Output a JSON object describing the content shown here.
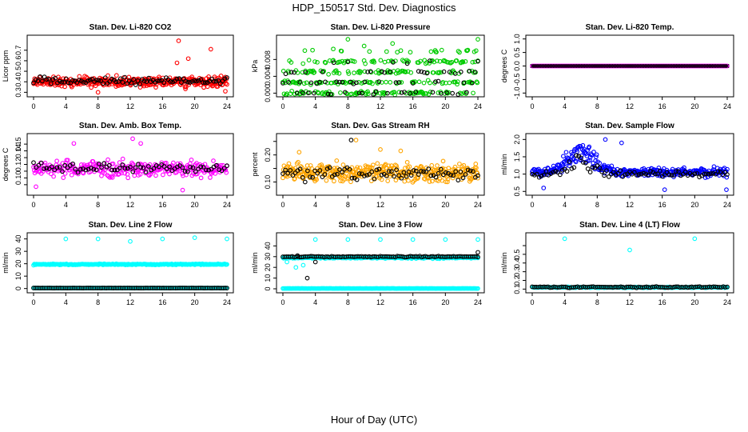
{
  "figure": {
    "title": "HDP_150517  Std. Dev. Diagnostics",
    "xlabel": "Hour of Day (UTC)"
  },
  "chart_data": [
    {
      "id": "co2",
      "type": "scatter",
      "title": "Stan. Dev. Li-820 CO2",
      "ylabel": "Licor ppm",
      "xlim": [
        0,
        24
      ],
      "ylim": [
        0.28,
        0.82
      ],
      "xticks": [
        0,
        4,
        8,
        12,
        16,
        20,
        24
      ],
      "yticks": [
        0.3,
        0.4,
        0.5,
        0.6,
        0.7
      ],
      "ytick_labels": [
        "0.3",
        "0.4",
        "0.5",
        "0.6",
        "0.7"
      ],
      "series": [
        {
          "color": "#ff0000",
          "marker": "circle",
          "seed": 11,
          "n": 360,
          "base": 0.4,
          "noise": 0.045,
          "outliers": [
            [
              18.0,
              0.79
            ],
            [
              19.2,
              0.62
            ],
            [
              22.0,
              0.71
            ],
            [
              23.8,
              0.31
            ],
            [
              8.0,
              0.3
            ],
            [
              17.8,
              0.58
            ]
          ]
        },
        {
          "color": "#000000",
          "marker": "circle",
          "seed": 12,
          "n": 90,
          "base": 0.41,
          "noise": 0.035,
          "outliers": []
        }
      ]
    },
    {
      "id": "pressure",
      "type": "scatter",
      "title": "Stan. Dev. Li-820 Pressure",
      "ylabel": "kPa",
      "xlim": [
        0,
        24
      ],
      "ylim": [
        -0.0003,
        0.0132
      ],
      "xticks": [
        0,
        4,
        8,
        12,
        16,
        20,
        24
      ],
      "yticks": [
        0,
        0.004,
        0.008
      ],
      "ytick_labels": [
        "0.000",
        "0.004",
        "0.008"
      ],
      "series": [
        {
          "color": "#00cc00",
          "marker": "circle",
          "seed": 21,
          "n": 330,
          "base": 0.005,
          "noise": 0.0028,
          "levels": [
            0,
            0.0025,
            0.005,
            0.0075,
            0.01
          ],
          "outliers": [
            [
              8.0,
              0.0128
            ],
            [
              24.0,
              0.0128
            ],
            [
              13.5,
              0.0118
            ],
            [
              10.0,
              0.0112
            ],
            [
              6.2,
              0.0105
            ]
          ]
        },
        {
          "color": "#000000",
          "marker": "circle",
          "seed": 22,
          "n": 70,
          "base": 0.0045,
          "noise": 0.0022,
          "levels": [
            0,
            0.0025,
            0.005,
            0.0075
          ],
          "outliers": []
        }
      ]
    },
    {
      "id": "temp",
      "type": "scatter",
      "title": "Stan. Dev. Li-820 Temp.",
      "ylabel": "degrees C",
      "xlim": [
        0,
        24
      ],
      "ylim": [
        -1.05,
        1.05
      ],
      "xticks": [
        0,
        4,
        8,
        12,
        16,
        20,
        24
      ],
      "yticks": [
        -1,
        -0.5,
        0,
        0.5,
        1
      ],
      "ytick_labels": [
        "-1.0",
        "-0.5",
        "0.0",
        "0.5",
        "1.0"
      ],
      "series": [
        {
          "color": "#ff00ff",
          "marker": "circle",
          "seed": 31,
          "n": 200,
          "base": 0,
          "noise": 0,
          "outliers": []
        },
        {
          "color": "#000000",
          "marker": "cross",
          "seed": 32,
          "n": 120,
          "base": 0,
          "noise": 0,
          "outliers": []
        }
      ]
    },
    {
      "id": "ambtemp",
      "type": "scatter",
      "title": "Stan. Dev. Amb. Box Temp.",
      "ylabel": "degrees C",
      "xlim": [
        0,
        24
      ],
      "ylim": [
        0.078,
        0.162
      ],
      "xticks": [
        0,
        4,
        8,
        12,
        16,
        20,
        24
      ],
      "yticks": [
        0.09,
        0.1,
        0.11,
        0.12,
        0.13,
        0.14,
        0.15
      ],
      "ytick_labels": [
        "",
        "0.10",
        "",
        "0.12",
        "",
        "0.14",
        "0.15"
      ],
      "series": [
        {
          "color": "#ff00ff",
          "marker": "circle",
          "seed": 41,
          "n": 300,
          "base": 0.113,
          "noise": 0.011,
          "outliers": [
            [
              12.3,
              0.158
            ],
            [
              18.5,
              0.082
            ],
            [
              5.0,
              0.151
            ],
            [
              0.3,
              0.087
            ],
            [
              13.3,
              0.151
            ]
          ]
        },
        {
          "color": "#000000",
          "marker": "circle",
          "seed": 42,
          "n": 75,
          "base": 0.115,
          "noise": 0.008,
          "outliers": []
        }
      ]
    },
    {
      "id": "rh",
      "type": "scatter",
      "title": "Stan. Dev. Gas Stream RH",
      "ylabel": "percent",
      "xlim": [
        0,
        24
      ],
      "ylim": [
        0.06,
        0.27
      ],
      "xticks": [
        0,
        4,
        8,
        12,
        16,
        20,
        24
      ],
      "yticks": [
        0.1,
        0.15,
        0.2,
        0.25
      ],
      "ytick_labels": [
        "0.10",
        "",
        "0.20",
        ""
      ],
      "series": [
        {
          "color": "#ffa500",
          "marker": "circle",
          "seed": 51,
          "n": 360,
          "base": 0.135,
          "noise": 0.03,
          "outliers": [
            [
              9.0,
              0.255
            ],
            [
              12.0,
              0.22
            ],
            [
              14.5,
              0.215
            ],
            [
              2.0,
              0.21
            ]
          ]
        },
        {
          "color": "#000000",
          "marker": "circle",
          "seed": 52,
          "n": 80,
          "base": 0.13,
          "noise": 0.025,
          "outliers": [
            [
              8.4,
              0.255
            ]
          ]
        }
      ]
    },
    {
      "id": "sampleflow",
      "type": "scatter",
      "title": "Stan. Dev. Sample Flow",
      "ylabel": "ml/min",
      "xlim": [
        0,
        24
      ],
      "ylim": [
        0.46,
        2.1
      ],
      "xticks": [
        0,
        4,
        8,
        12,
        16,
        20,
        24
      ],
      "yticks": [
        0.5,
        1.0,
        1.5,
        2.0
      ],
      "ytick_labels": [
        "0.5",
        "1.0",
        "1.5",
        "2.0"
      ],
      "series": [
        {
          "color": "#0000ff",
          "marker": "circle",
          "seed": 61,
          "n": 340,
          "base": 1.05,
          "noise": 0.12,
          "hump": [
            6,
            0.6,
            2.2
          ],
          "outliers": [
            [
              9.0,
              2.0
            ],
            [
              23.9,
              0.55
            ],
            [
              16.3,
              0.55
            ],
            [
              1.4,
              0.6
            ],
            [
              11.0,
              1.9
            ]
          ]
        },
        {
          "color": "#000000",
          "marker": "circle",
          "seed": 62,
          "n": 85,
          "base": 1.0,
          "noise": 0.1,
          "hump": [
            6,
            0.4,
            2.0
          ],
          "outliers": []
        }
      ]
    },
    {
      "id": "line2",
      "type": "scatter",
      "title": "Stan. Dev. Line 2 Flow",
      "ylabel": "ml/min",
      "xlim": [
        0,
        24
      ],
      "ylim": [
        -1.5,
        43
      ],
      "xticks": [
        0,
        4,
        8,
        12,
        16,
        20,
        24
      ],
      "yticks": [
        0,
        10,
        20,
        30,
        40
      ],
      "ytick_labels": [
        "0",
        "10",
        "20",
        "30",
        "40"
      ],
      "series": [
        {
          "color": "#00ffff",
          "marker": "circle",
          "seed": 71,
          "n": 260,
          "base": 19.5,
          "noise": 0.4,
          "outliers": [
            [
              4.0,
              40
            ],
            [
              8.0,
              40
            ],
            [
              12.0,
              38
            ],
            [
              16.0,
              40
            ],
            [
              20.0,
              41
            ],
            [
              24.0,
              40
            ]
          ]
        },
        {
          "color": "#00ffff",
          "marker": "circle",
          "seed": 72,
          "n": 200,
          "base": 0.4,
          "noise": 0.1,
          "outliers": []
        },
        {
          "color": "#000000",
          "marker": "circle",
          "seed": 73,
          "n": 110,
          "base": 0.4,
          "noise": 0.05,
          "outliers": []
        }
      ]
    },
    {
      "id": "line3",
      "type": "scatter",
      "title": "Stan. Dev. Line 3 Flow",
      "ylabel": "ml/min",
      "xlim": [
        0,
        24
      ],
      "ylim": [
        -1.5,
        50
      ],
      "xticks": [
        0,
        4,
        8,
        12,
        16,
        20,
        24
      ],
      "yticks": [
        0,
        10,
        20,
        30,
        40
      ],
      "ytick_labels": [
        "0",
        "10",
        "20",
        "30",
        "40"
      ],
      "series": [
        {
          "color": "#00ffff",
          "marker": "circle",
          "seed": 81,
          "n": 260,
          "base": 29,
          "noise": 0.7,
          "outliers": [
            [
              4.0,
              46
            ],
            [
              8.0,
              46
            ],
            [
              12.0,
              46
            ],
            [
              16.0,
              46
            ],
            [
              20.0,
              46
            ],
            [
              24.0,
              46
            ],
            [
              1.6,
              20
            ],
            [
              0.5,
              25
            ],
            [
              2.5,
              22
            ]
          ]
        },
        {
          "color": "#00ffff",
          "marker": "circle",
          "seed": 82,
          "n": 200,
          "base": 0.3,
          "noise": 0.1,
          "outliers": []
        },
        {
          "color": "#000000",
          "marker": "circle",
          "seed": 83,
          "n": 105,
          "base": 30,
          "noise": 0.5,
          "outliers": [
            [
              3.0,
              10
            ],
            [
              4.0,
              25
            ],
            [
              1.8,
              31
            ],
            [
              24.0,
              34
            ]
          ]
        }
      ]
    },
    {
      "id": "line4",
      "type": "scatter",
      "title": "Stan. Dev. Line 4 (LT) Flow",
      "ylabel": "ml/min",
      "xlim": [
        0,
        24
      ],
      "ylim": [
        0.085,
        0.72
      ],
      "xticks": [
        0,
        4,
        8,
        12,
        16,
        20,
        24
      ],
      "yticks": [
        0.1,
        0.2,
        0.3,
        0.4,
        0.5,
        0.6
      ],
      "ytick_labels": [
        "0.1",
        "0.2",
        "0.3",
        "0.4",
        "0.5",
        ""
      ],
      "series": [
        {
          "color": "#00ffff",
          "marker": "circle",
          "seed": 91,
          "n": 220,
          "base": 0.12,
          "noise": 0.005,
          "outliers": [
            [
              4.0,
              0.68
            ],
            [
              20.0,
              0.68
            ],
            [
              12.0,
              0.55
            ]
          ]
        },
        {
          "color": "#000000",
          "marker": "circle",
          "seed": 92,
          "n": 100,
          "base": 0.123,
          "noise": 0.006,
          "outliers": []
        }
      ]
    }
  ]
}
